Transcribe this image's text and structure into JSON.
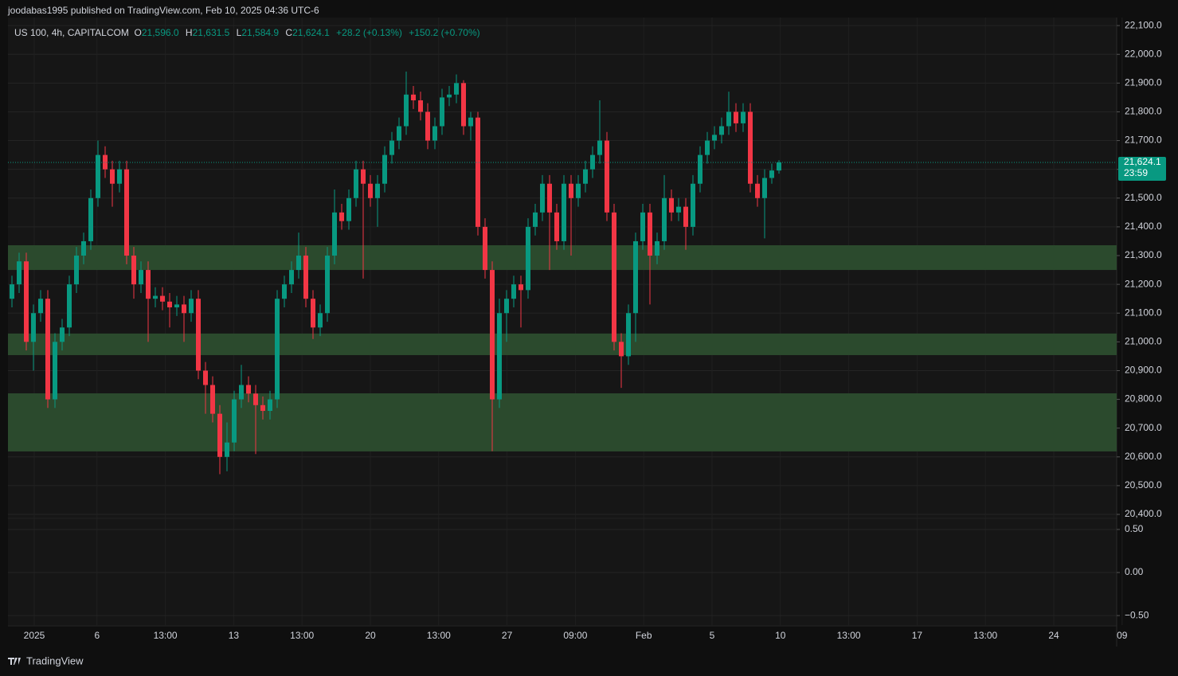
{
  "header": {
    "text": "joodabas1995 published on TradingView.com, Feb 10, 2025 04:36 UTC-6"
  },
  "footer": {
    "brand": "TradingView"
  },
  "chart_data": [
    {
      "type": "candlestick",
      "legend": {
        "symbol": "US 100, 4h, CAPITALCOM",
        "open_label": "O",
        "open": "21,596.0",
        "high_label": "H",
        "high": "21,631.5",
        "low_label": "L",
        "low": "21,584.9",
        "close_label": "C",
        "close": "21,624.1",
        "change": "+28.2 (+0.13%)",
        "change_day": "+150.2 (+0.70%)"
      },
      "xtick_labels": [
        "2025",
        "6",
        "13:00",
        "13",
        "13:00",
        "20",
        "13:00",
        "27",
        "09:00",
        "Feb",
        "5",
        "10",
        "13:00",
        "17",
        "13:00",
        "24",
        "09"
      ],
      "up_color": "#089981",
      "down_color": "#f23645",
      "open": [
        21150,
        21200,
        21280,
        21000,
        21100,
        21150,
        20800,
        21000,
        21050,
        21200,
        21300,
        21350,
        21500,
        21650,
        21600,
        21550,
        21600,
        21300,
        21200,
        21250,
        21150,
        21160,
        21140,
        21120,
        21130,
        21100,
        21150,
        20900,
        20850,
        20750,
        20600,
        20650,
        20800,
        20850,
        20820,
        20780,
        20760,
        20800,
        21150,
        21200,
        21250,
        21300,
        21150,
        21050,
        21100,
        21300,
        21450,
        21420,
        21500,
        21600,
        21550,
        21500,
        21550,
        21650,
        21700,
        21750,
        21860,
        21840,
        21800,
        21700,
        21750,
        21850,
        21860,
        21900,
        21750,
        21780,
        21400,
        21250,
        20800,
        21100,
        21150,
        21200,
        21180,
        21400,
        21450,
        21550,
        21450,
        21350,
        21550,
        21500,
        21550,
        21600,
        21650,
        21700,
        21450,
        21000,
        20950,
        21100,
        21350,
        21450,
        21300,
        21350,
        21500,
        21450,
        21470,
        21400,
        21550,
        21650,
        21700,
        21720,
        21750,
        21800,
        21760,
        21800,
        21550,
        21500,
        21570,
        21596
      ],
      "high": [
        21230,
        21310,
        21310,
        21130,
        21180,
        21180,
        21030,
        21080,
        21230,
        21330,
        21380,
        21530,
        21700,
        21680,
        21630,
        21630,
        21630,
        21330,
        21280,
        21280,
        21190,
        21190,
        21170,
        21160,
        21160,
        21180,
        21180,
        20930,
        20880,
        20780,
        20720,
        20830,
        20920,
        20880,
        20850,
        20810,
        20830,
        21180,
        21230,
        21280,
        21380,
        21330,
        21180,
        21130,
        21330,
        21530,
        21480,
        21530,
        21630,
        21630,
        21580,
        21580,
        21680,
        21730,
        21780,
        21940,
        21890,
        21870,
        21830,
        21780,
        21880,
        21890,
        21930,
        21910,
        21800,
        21800,
        21430,
        21280,
        21150,
        21180,
        21230,
        21230,
        21430,
        21480,
        21580,
        21580,
        21480,
        21580,
        21580,
        21580,
        21630,
        21680,
        21840,
        21730,
        21480,
        21030,
        21130,
        21380,
        21480,
        21480,
        21380,
        21580,
        21530,
        21500,
        21500,
        21580,
        21680,
        21730,
        21750,
        21780,
        21870,
        21830,
        21830,
        21830,
        21580,
        21600,
        21620,
        21631.5
      ],
      "low": [
        21120,
        21170,
        20970,
        20900,
        21070,
        20770,
        20770,
        20970,
        21020,
        21170,
        21270,
        21320,
        21470,
        21570,
        21470,
        21520,
        21270,
        21150,
        21170,
        21000,
        21120,
        21110,
        21050,
        21090,
        21000,
        21070,
        20870,
        20750,
        20720,
        20540,
        20550,
        20620,
        20770,
        20790,
        20610,
        20730,
        20730,
        20770,
        21120,
        21170,
        21220,
        21120,
        21010,
        21020,
        21070,
        21270,
        21390,
        21390,
        21470,
        21220,
        21470,
        21400,
        21520,
        21620,
        21670,
        21720,
        21810,
        21770,
        21670,
        21670,
        21720,
        21820,
        21830,
        21720,
        21700,
        21370,
        21220,
        20620,
        20770,
        21000,
        21120,
        21050,
        21150,
        21370,
        21420,
        21250,
        21320,
        21320,
        21300,
        21470,
        21520,
        21570,
        21620,
        21420,
        20970,
        20840,
        20920,
        21000,
        21320,
        21130,
        21270,
        21320,
        21420,
        21420,
        21320,
        21370,
        21520,
        21620,
        21670,
        21690,
        21720,
        21730,
        21730,
        21520,
        21470,
        21360,
        21550,
        21584.9
      ],
      "close": [
        21200,
        21280,
        21000,
        21100,
        21150,
        20800,
        21000,
        21050,
        21200,
        21300,
        21350,
        21500,
        21650,
        21600,
        21550,
        21600,
        21300,
        21200,
        21250,
        21150,
        21160,
        21140,
        21120,
        21130,
        21100,
        21150,
        20900,
        20850,
        20750,
        20600,
        20650,
        20800,
        20850,
        20820,
        20780,
        20760,
        20800,
        21150,
        21200,
        21250,
        21300,
        21150,
        21050,
        21100,
        21300,
        21450,
        21420,
        21500,
        21600,
        21550,
        21500,
        21550,
        21650,
        21700,
        21750,
        21860,
        21840,
        21800,
        21700,
        21750,
        21850,
        21860,
        21900,
        21750,
        21780,
        21400,
        21250,
        20800,
        21100,
        21150,
        21200,
        21180,
        21400,
        21450,
        21550,
        21450,
        21350,
        21550,
        21500,
        21550,
        21600,
        21650,
        21700,
        21450,
        21000,
        20950,
        21100,
        21350,
        21450,
        21300,
        21350,
        21500,
        21450,
        21470,
        21400,
        21550,
        21650,
        21700,
        21720,
        21750,
        21800,
        21760,
        21800,
        21550,
        21500,
        21570,
        21596,
        21624.1
      ],
      "zones": [
        {
          "low": 21250,
          "high": 21336,
          "color": "#2b4a2d"
        },
        {
          "low": 20954,
          "high": 21029,
          "color": "#2b4a2d"
        },
        {
          "low": 20619,
          "high": 20821,
          "color": "#2b4a2d"
        }
      ],
      "price_line": {
        "value": 21624.1,
        "label": "21,624.1",
        "countdown": "23:59",
        "color": "#089981"
      },
      "ylim": [
        20389,
        22128
      ],
      "yticks": [
        {
          "value": 22100,
          "label": "22,100.0"
        },
        {
          "value": 22000,
          "label": "22,000.0"
        },
        {
          "value": 21900,
          "label": "21,900.0"
        },
        {
          "value": 21800,
          "label": "21,800.0"
        },
        {
          "value": 21700,
          "label": "21,700.0"
        },
        {
          "value": 21600,
          "label": "21,600.0"
        },
        {
          "value": 21500,
          "label": "21,500.0"
        },
        {
          "value": 21400,
          "label": "21,400.0"
        },
        {
          "value": 21300,
          "label": "21,300.0"
        },
        {
          "value": 21200,
          "label": "21,200.0"
        },
        {
          "value": 21100,
          "label": "21,100.0"
        },
        {
          "value": 21000,
          "label": "21,000.0"
        },
        {
          "value": 20900,
          "label": "20,900.0"
        },
        {
          "value": 20800,
          "label": "20,800.0"
        },
        {
          "value": 20700,
          "label": "20,700.0"
        },
        {
          "value": 20600,
          "label": "20,600.0"
        },
        {
          "value": 20500,
          "label": "20,500.0"
        },
        {
          "value": 20400,
          "label": "20,400.0"
        }
      ],
      "grid": true
    },
    {
      "type": "line",
      "ylim": [
        -0.61,
        0.62
      ],
      "yticks": [
        {
          "value": 0.5,
          "label": "0.50"
        },
        {
          "value": 0,
          "label": "0.00"
        },
        {
          "value": -0.5,
          "label": "−0.50"
        }
      ],
      "grid": true
    }
  ]
}
